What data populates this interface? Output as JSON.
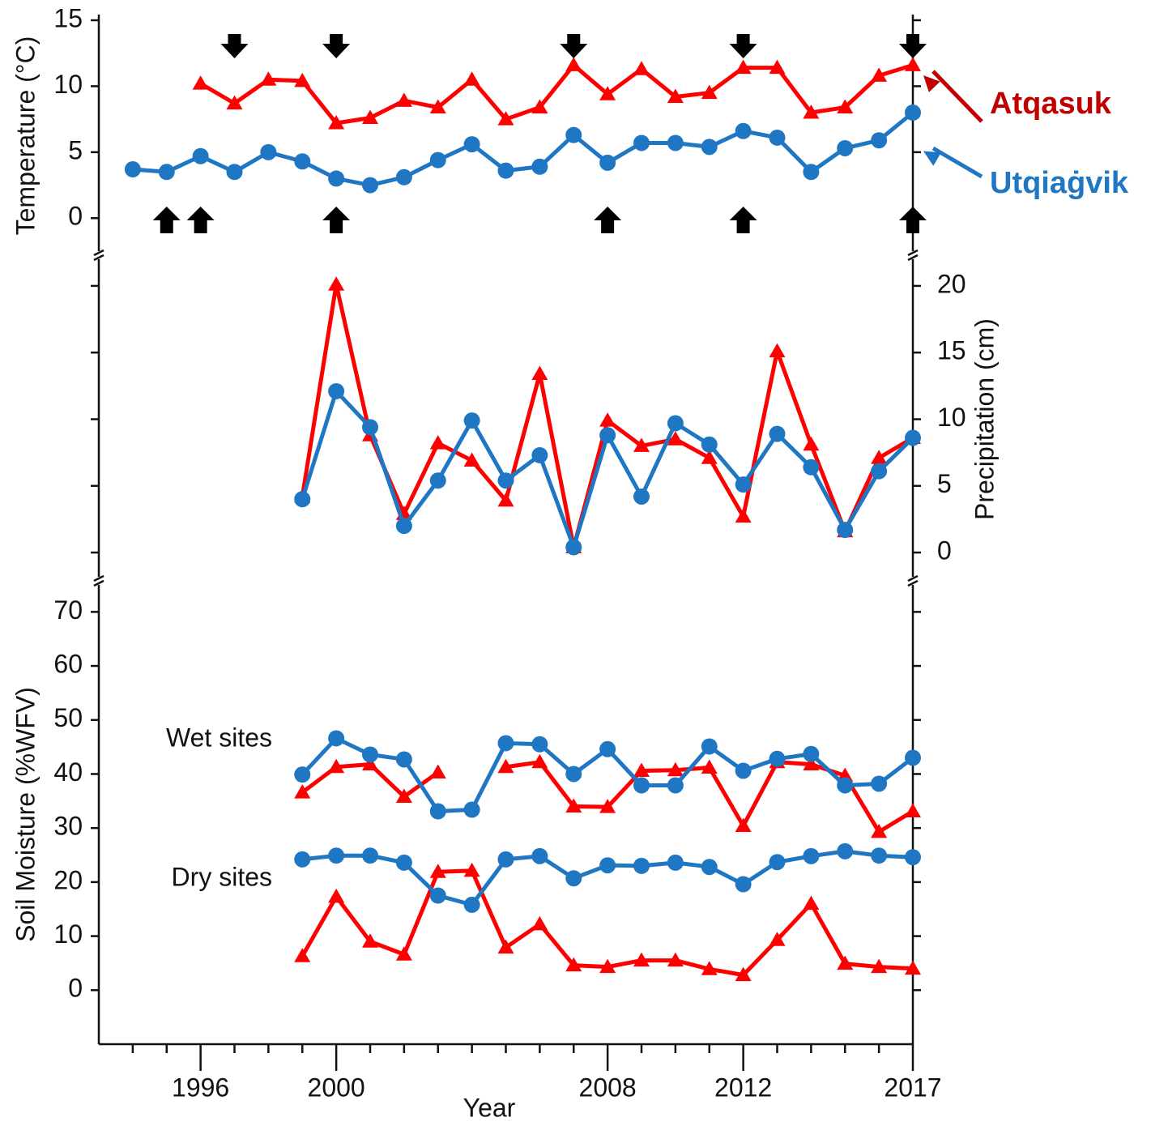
{
  "chart_data": [
    {
      "type": "line",
      "ylabel": "Temperature (°C)",
      "x": [
        1994,
        1995,
        1996,
        1997,
        1998,
        1999,
        2000,
        2001,
        2002,
        2003,
        2004,
        2005,
        2006,
        2007,
        2008,
        2009,
        2010,
        2011,
        2012,
        2013,
        2014,
        2015,
        2016,
        2017
      ],
      "ylim": [
        -2.5,
        15
      ],
      "yticks": [
        0,
        5,
        10,
        15
      ],
      "legend": "right",
      "legend_colors": [
        "#c00000",
        "#1f77c4"
      ],
      "series": [
        {
          "name": "Atqasuk",
          "color": "#ff0000",
          "marker": "triangle",
          "values": [
            null,
            null,
            10.2,
            8.7,
            10.5,
            10.4,
            7.2,
            7.6,
            8.9,
            8.4,
            10.5,
            7.5,
            8.4,
            11.6,
            9.4,
            11.3,
            9.2,
            9.5,
            11.4,
            11.4,
            8.0,
            8.4,
            10.8,
            11.6
          ]
        },
        {
          "name": "Utqiaġvik",
          "color": "#1f77c4",
          "marker": "circle",
          "values": [
            3.7,
            3.5,
            4.7,
            3.5,
            5.0,
            4.3,
            3.0,
            2.5,
            3.1,
            4.4,
            5.6,
            3.6,
            3.9,
            6.3,
            4.2,
            5.7,
            5.7,
            5.4,
            6.6,
            6.1,
            3.5,
            5.3,
            5.9,
            8.0
          ]
        }
      ],
      "down_arrows": [
        1997,
        2000,
        2007,
        2012,
        2017
      ],
      "up_arrows": [
        1995,
        1996,
        2000,
        2008,
        2012,
        2017
      ]
    },
    {
      "type": "line",
      "ylabel": "Precipitation (cm)",
      "yaxis": "right",
      "x": [
        1999,
        2000,
        2001,
        2002,
        2003,
        2004,
        2005,
        2006,
        2007,
        2008,
        2009,
        2010,
        2011,
        2012,
        2013,
        2014,
        2015,
        2016,
        2017
      ],
      "ylim": [
        -2,
        22
      ],
      "yticks": [
        0,
        5,
        10,
        15,
        20
      ],
      "series": [
        {
          "color": "#ff0000",
          "marker": "triangle",
          "values": [
            4.2,
            20.1,
            8.8,
            2.9,
            8.2,
            6.9,
            3.9,
            13.4,
            0.4,
            9.9,
            8.0,
            8.5,
            7.1,
            2.7,
            15.1,
            8.1,
            1.6,
            7.1,
            8.6
          ]
        },
        {
          "color": "#1f77c4",
          "marker": "circle",
          "values": [
            4.0,
            12.1,
            9.4,
            2.0,
            5.4,
            9.9,
            5.4,
            7.3,
            0.4,
            8.8,
            4.2,
            9.7,
            8.1,
            5.1,
            8.9,
            6.4,
            1.7,
            6.1,
            8.6
          ]
        }
      ]
    },
    {
      "type": "line",
      "ylabel": "Soil Moisture (%WFV)",
      "xlabel": "Year",
      "x": [
        1999,
        2000,
        2001,
        2002,
        2003,
        2004,
        2005,
        2006,
        2007,
        2008,
        2009,
        2010,
        2011,
        2012,
        2013,
        2014,
        2015,
        2016,
        2017
      ],
      "xlim": [
        1993,
        2017
      ],
      "xticks": [
        1996,
        2000,
        2008,
        2012,
        2017
      ],
      "xticks_minor": [
        1994,
        1995,
        1997,
        1998,
        1999,
        2001,
        2002,
        2003,
        2004,
        2005,
        2006,
        2007,
        2009,
        2010,
        2011,
        2013,
        2014,
        2015,
        2016
      ],
      "ylim": [
        -10,
        75
      ],
      "yticks": [
        0,
        10,
        20,
        30,
        40,
        50,
        60,
        70
      ],
      "annotations": [
        "Wet sites",
        "Dry sites"
      ],
      "series": [
        {
          "color": "#ff0000",
          "marker": "triangle",
          "values": [
            36.6,
            41.3,
            41.8,
            35.8,
            40.3,
            null,
            41.3,
            42.2,
            34.0,
            33.9,
            40.6,
            40.7,
            41.2,
            30.4,
            42.2,
            41.8,
            39.7,
            29.3,
            33.1
          ]
        },
        {
          "color": "#1f77c4",
          "marker": "circle",
          "values": [
            39.9,
            46.6,
            43.6,
            42.7,
            33.1,
            33.4,
            45.7,
            45.5,
            40.0,
            44.6,
            37.9,
            37.9,
            45.1,
            40.6,
            42.8,
            43.7,
            37.9,
            38.2,
            43.0
          ]
        },
        {
          "color": "#ff0000",
          "marker": "triangle",
          "values": [
            6.3,
            17.3,
            9.0,
            6.6,
            21.9,
            22.1,
            7.9,
            12.2,
            4.6,
            4.3,
            5.5,
            5.5,
            3.9,
            2.8,
            9.3,
            16.0,
            4.9,
            4.3,
            4.0
          ]
        },
        {
          "color": "#1f77c4",
          "marker": "circle",
          "values": [
            24.2,
            24.9,
            24.9,
            23.6,
            17.5,
            15.8,
            24.2,
            24.8,
            20.7,
            23.1,
            23.0,
            23.6,
            22.8,
            19.6,
            23.7,
            24.8,
            25.7,
            24.9,
            24.6
          ]
        }
      ]
    }
  ]
}
